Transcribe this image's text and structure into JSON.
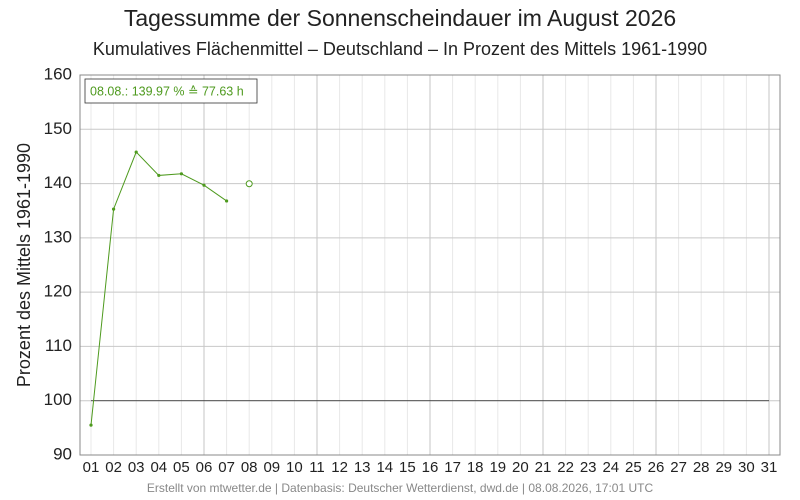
{
  "chart_data": {
    "type": "line",
    "title": "Tagessumme der Sonnenscheindauer im August 2026",
    "subtitle": "Kumulatives Flächenmittel – Deutschland – In Prozent des Mittels 1961-1990",
    "y_label": "Prozent des Mittels 1961-1990",
    "annotation": "08.08.: 139.97 % ≙ 77.63 h",
    "footer": "Erstellt von mtwetter.de | Datenbasis: Deutscher Wetterdienst, dwd.de | 08.08.2026, 17:01 UTC",
    "categories": [
      "01",
      "02",
      "03",
      "04",
      "05",
      "06",
      "07",
      "08",
      "09",
      "10",
      "11",
      "12",
      "13",
      "14",
      "15",
      "16",
      "17",
      "18",
      "19",
      "20",
      "21",
      "22",
      "23",
      "24",
      "25",
      "26",
      "27",
      "28",
      "29",
      "30",
      "31"
    ],
    "series": [
      {
        "color": "#4e9a1e",
        "marker": "dot",
        "values": [
          95.5,
          135.3,
          145.8,
          141.5,
          141.8,
          139.7,
          136.8,
          null,
          null,
          null,
          null,
          null,
          null,
          null,
          null,
          null,
          null,
          null,
          null,
          null,
          null,
          null,
          null,
          null,
          null,
          null,
          null,
          null,
          null,
          null,
          null
        ]
      },
      {
        "color": "#4e9a1e",
        "marker": "open",
        "values": [
          null,
          null,
          null,
          null,
          null,
          null,
          null,
          139.97,
          null,
          null,
          null,
          null,
          null,
          null,
          null,
          null,
          null,
          null,
          null,
          null,
          null,
          null,
          null,
          null,
          null,
          null,
          null,
          null,
          null,
          null,
          null
        ]
      }
    ],
    "reference_line": 100,
    "ylim": [
      90,
      160
    ],
    "yticks": [
      90,
      100,
      110,
      120,
      130,
      140,
      150,
      160
    ],
    "grid": true
  }
}
